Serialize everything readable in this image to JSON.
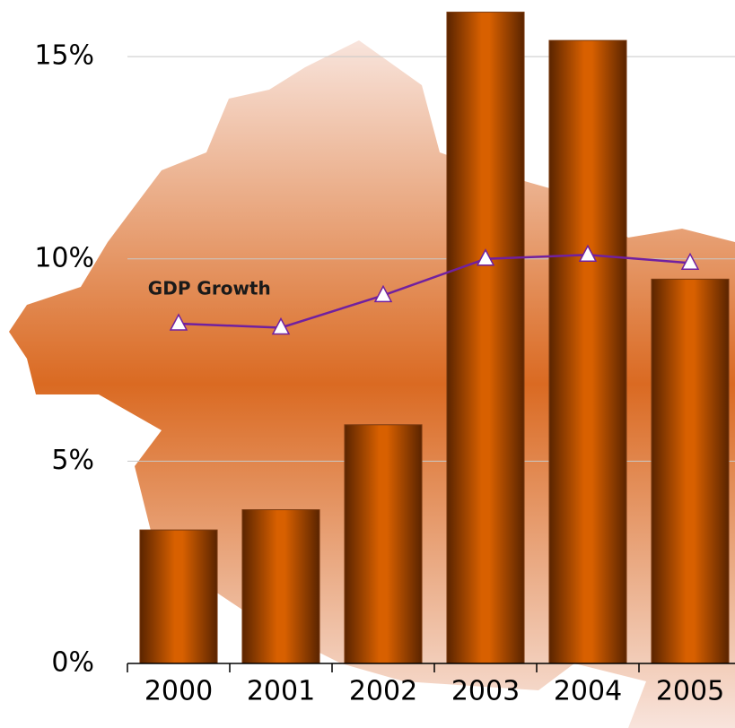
{
  "chart_data": {
    "type": "bar",
    "categories": [
      "2000",
      "2001",
      "2002",
      "2003",
      "2004",
      "2005"
    ],
    "series": [
      {
        "type": "bar",
        "color": "#d86000",
        "values": [
          3.3,
          3.8,
          5.9,
          16.1,
          15.4,
          9.5
        ]
      },
      {
        "type": "line",
        "name": "GDP Growth",
        "color": "#7020a0",
        "values": [
          8.4,
          8.3,
          9.1,
          10.0,
          10.1,
          9.9
        ]
      }
    ],
    "ylim": [
      0,
      16.4
    ],
    "yticks": [
      {
        "value": 0,
        "label": "0%"
      },
      {
        "value": 5,
        "label": "5%"
      },
      {
        "value": 10,
        "label": "10%"
      },
      {
        "value": 15,
        "label": "15%"
      }
    ],
    "grid": true
  }
}
